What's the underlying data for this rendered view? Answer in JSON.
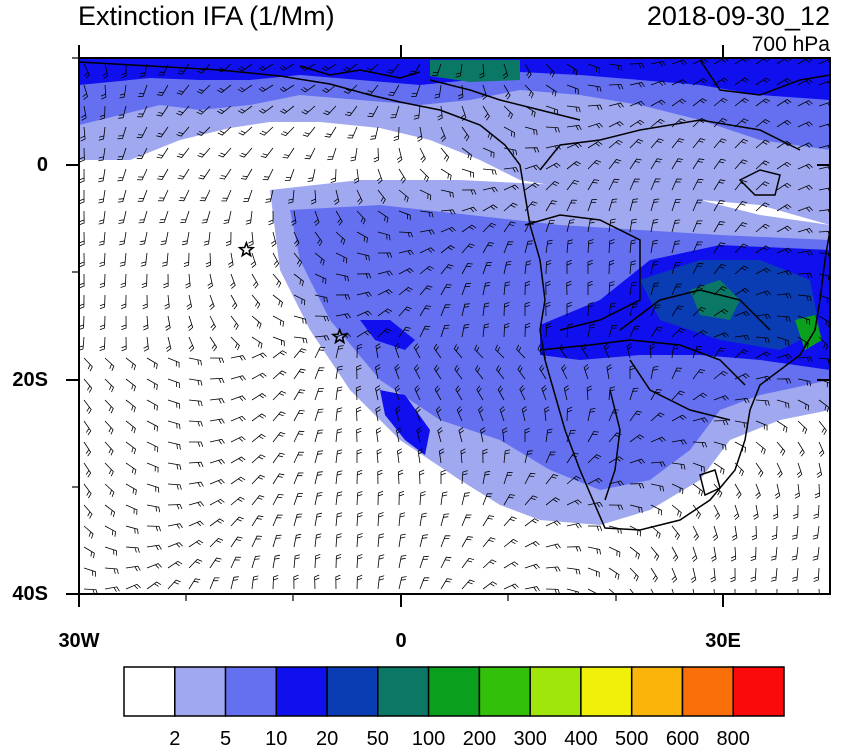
{
  "map": {
    "title": "Extinction IFA (1/Mm)",
    "datetime": "2018-09-30_12",
    "level": "700 hPa",
    "y_axis_labels": [
      "0",
      "20S",
      "40S"
    ],
    "x_axis_labels": [
      "30W",
      "0",
      "30E"
    ],
    "extent": {
      "lon": [
        -30,
        40
      ],
      "lat": [
        -40,
        10
      ]
    },
    "markers": [
      {
        "name": "star",
        "lon": -14.4,
        "lat": -7.9
      },
      {
        "name": "star",
        "lon": -5.7,
        "lat": -16.0
      }
    ],
    "colorbar": {
      "labels": [
        "2",
        "5",
        "10",
        "20",
        "50",
        "100",
        "200",
        "300",
        "400",
        "500",
        "600",
        "800"
      ],
      "colors": [
        "#ffffff",
        "#a0a8f0",
        "#6470f0",
        "#1010ee",
        "#0a3cb4",
        "#0a7864",
        "#0aa01e",
        "#32c00a",
        "#a0e60a",
        "#f0f00a",
        "#fab40a",
        "#fa6e0a",
        "#fa0a0a"
      ]
    }
  }
}
